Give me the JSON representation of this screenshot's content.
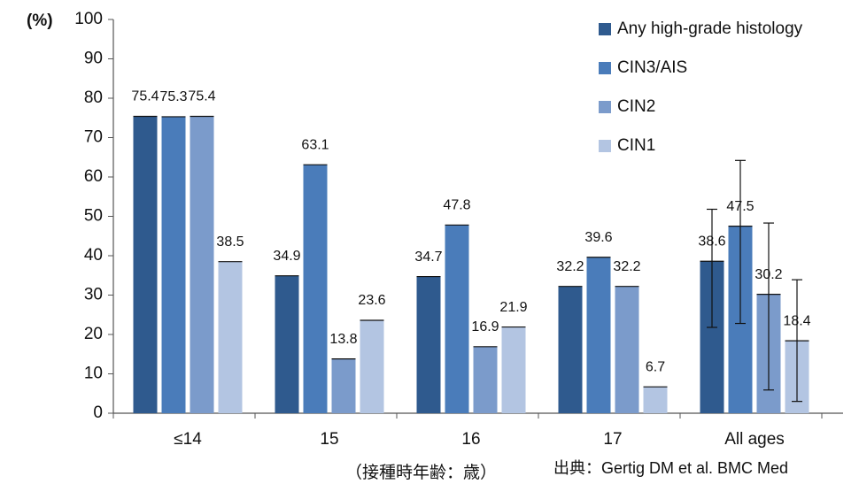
{
  "chart_data": {
    "type": "bar",
    "y_label": "(%)",
    "x_label": "（接種時年齢：歳）",
    "source": "出典：Gertig DM et al. BMC Med",
    "categories": [
      "≤14",
      "15",
      "16",
      "17",
      "All ages"
    ],
    "series": [
      {
        "name": "Any high-grade histology",
        "color": "#2f5a8e",
        "values": [
          75.4,
          34.9,
          34.7,
          32.2,
          38.6
        ],
        "ci_low": [
          null,
          null,
          null,
          null,
          21.8
        ],
        "ci_high": [
          null,
          null,
          null,
          null,
          51.8
        ]
      },
      {
        "name": "CIN3/AIS",
        "color": "#4a7cba",
        "values": [
          75.3,
          63.1,
          47.8,
          39.6,
          47.5
        ],
        "ci_low": [
          null,
          null,
          null,
          null,
          22.8
        ],
        "ci_high": [
          null,
          null,
          null,
          null,
          64.2
        ]
      },
      {
        "name": "CIN2",
        "color": "#7b9bcb",
        "values": [
          75.4,
          13.8,
          16.9,
          32.2,
          30.2
        ],
        "ci_low": [
          null,
          null,
          null,
          null,
          5.9
        ],
        "ci_high": [
          null,
          null,
          null,
          null,
          48.3
        ]
      },
      {
        "name": "CIN1",
        "color": "#b3c5e2",
        "values": [
          38.5,
          23.6,
          21.9,
          6.7,
          18.4
        ],
        "ci_low": [
          null,
          null,
          null,
          null,
          3
        ],
        "ci_high": [
          null,
          null,
          null,
          null,
          33.9
        ]
      }
    ],
    "ylim": [
      0,
      100
    ],
    "yticks": [
      0,
      10,
      20,
      30,
      40,
      50,
      60,
      70,
      80,
      90,
      100
    ],
    "grid": false,
    "legend": "top-right"
  }
}
